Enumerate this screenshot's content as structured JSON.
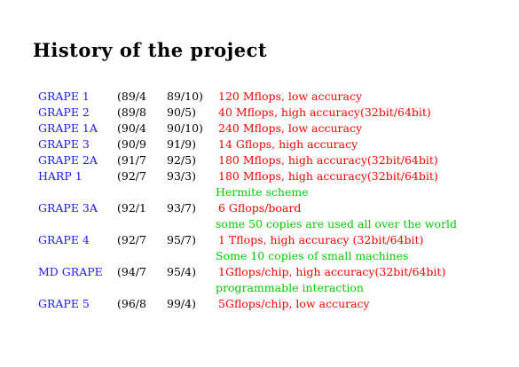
{
  "page": {
    "title": "History of the project"
  },
  "colors": {
    "machine_name": "#1a1aff",
    "dates": "#000000",
    "performance": "#ff0000",
    "note": "#00cc00"
  },
  "rows": [
    {
      "type": "entry",
      "name": "GRAPE 1",
      "start": "(89/4",
      "end": "89/10)",
      "desc": "120 Mflops, low accuracy"
    },
    {
      "type": "entry",
      "name": "GRAPE 2",
      "start": "(89/8",
      "end": "90/5)",
      "desc": "40 Mflops, high accuracy(32bit/64bit)"
    },
    {
      "type": "entry",
      "name": "GRAPE 1A",
      "start": "(90/4",
      "end": "90/10)",
      "desc": "240 Mflops, low accuracy"
    },
    {
      "type": "entry",
      "name": "GRAPE 3",
      "start": "(90/9",
      "end": "91/9)",
      "desc": "14 Gflops, high accuracy"
    },
    {
      "type": "entry",
      "name": "GRAPE 2A",
      "start": "(91/7",
      "end": "92/5)",
      "desc": "180 Mflops, high accuracy(32bit/64bit)"
    },
    {
      "type": "entry",
      "name": "HARP 1",
      "start": "(92/7",
      "end": "93/3)",
      "desc": "180 Mflops, high accuracy(32bit/64bit)"
    },
    {
      "type": "note",
      "text": "Hermite scheme"
    },
    {
      "type": "entry",
      "name": "GRAPE 3A",
      "start": "(92/1",
      "end": "93/7)",
      "desc": "6 Gflops/board"
    },
    {
      "type": "note",
      "text": "some 50 copies are used all over the world"
    },
    {
      "type": "entry",
      "name": "GRAPE 4",
      "start": "(92/7",
      "end": "95/7)",
      "desc": "1 Tflops, high accuracy (32bit/64bit)"
    },
    {
      "type": "note",
      "text": "Some 10 copies of small machines"
    },
    {
      "type": "entry",
      "name": "MD GRAPE",
      "start": "(94/7",
      "end": "95/4)",
      "desc": "1Gflops/chip, high accuracy(32bit/64bit)"
    },
    {
      "type": "note",
      "text": "programmable interaction"
    },
    {
      "type": "entry",
      "name": "GRAPE 5",
      "start": "(96/8",
      "end": "99/4)",
      "desc": "5Gflops/chip, low accuracy"
    }
  ]
}
